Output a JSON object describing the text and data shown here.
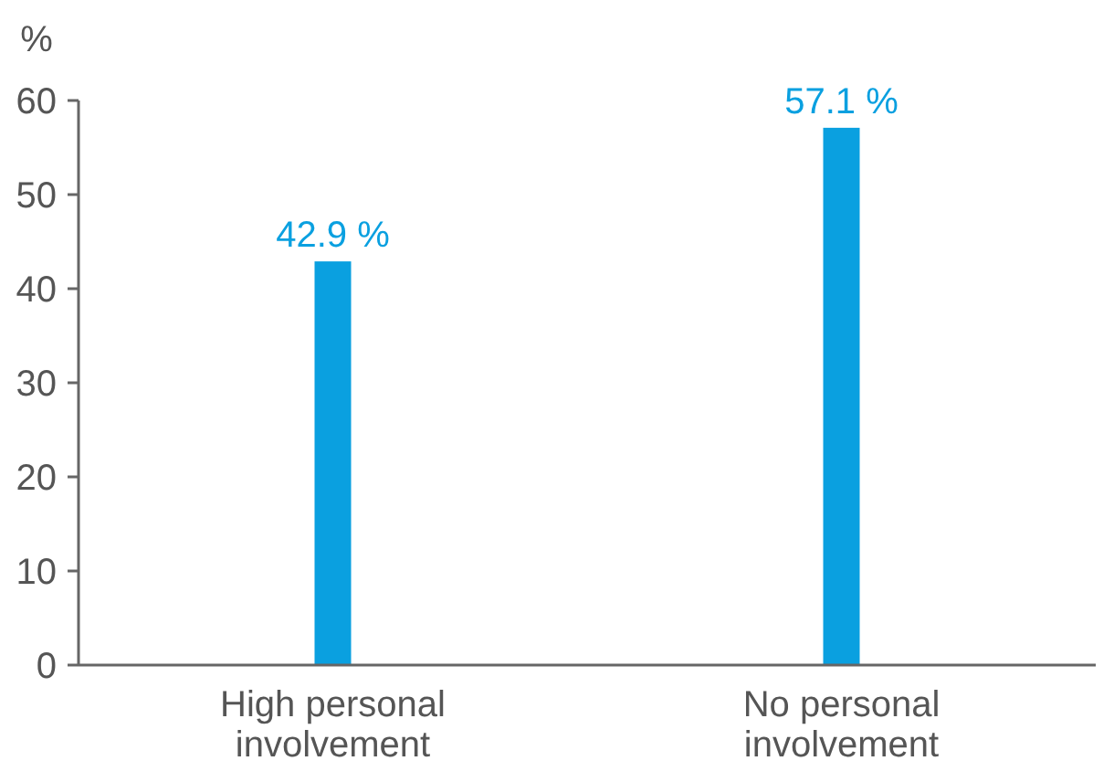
{
  "chart_data": {
    "type": "bar",
    "ylabel": "%",
    "categories": [
      "High personal involvement",
      "No personal involvement"
    ],
    "values": [
      42.9,
      57.1
    ],
    "value_labels": [
      "42.9 %",
      "57.1 %"
    ],
    "color": "#0aa0e0",
    "ylim": [
      0,
      60
    ],
    "yticks": [
      0,
      10,
      20,
      30,
      40,
      50,
      60
    ],
    "grid": false
  }
}
